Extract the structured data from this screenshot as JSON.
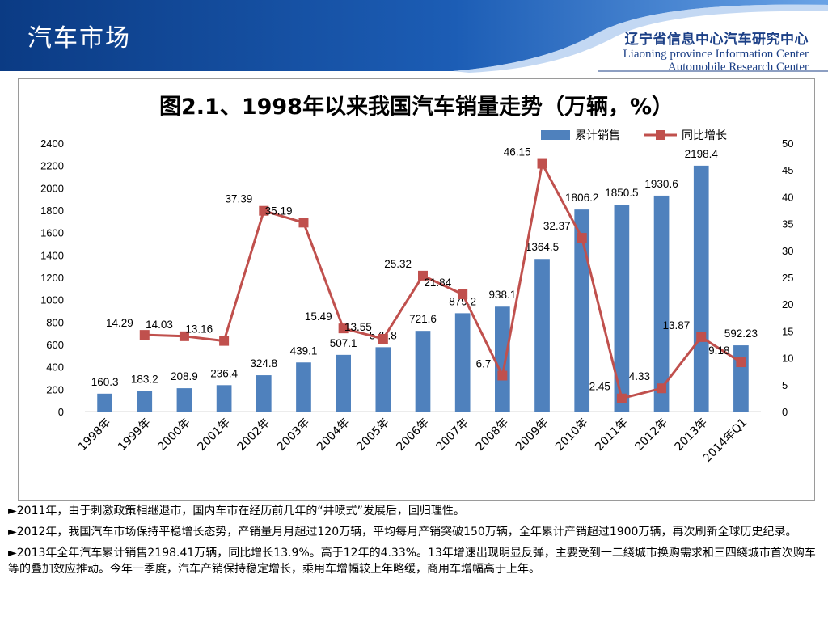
{
  "header": {
    "title": "汽车市场",
    "logo_cn": "辽宁省信息中心汽车研究中心",
    "logo_en_line1": "Liaoning province Information Center",
    "logo_en_line2": "Automobile Research Center"
  },
  "notes": [
    "►2011年，由于刺激政策相继退市，国内车市在经历前几年的“井喷式”发展后，回归理性。",
    "►2012年，我国汽车市场保持平稳增长态势，产销量月月超过120万辆，平均每月产销突破150万辆，全年累计产销超过1900万辆，再次刷新全球历史纪录。",
    "►2013年全年汽车累计销售2198.41万辆，同比增长13.9%。高于12年的4.33%。13年增速出现明显反弹，主要受到一二綫城市换购需求和三四綫城市首次购车等的叠加效应推动。今年一季度，汽车产销保持稳定增长，乘用车增幅较上年略缓，商用车增幅高于上年。"
  ],
  "colors": {
    "header_dark": "#0b3b84",
    "header_light": "#4f8bd6",
    "bar": "#4f81bd",
    "line": "#c0504d"
  },
  "chart_data": {
    "type": "bar",
    "title": "图2.1、1998年以来我国汽车销量走势（万辆，%）",
    "categories": [
      "1998年",
      "1999年",
      "2000年",
      "2001年",
      "2002年",
      "2003年",
      "2004年",
      "2005年",
      "2006年",
      "2007年",
      "2008年",
      "2009年",
      "2010年",
      "2011年",
      "2012年",
      "2013年",
      "2014年Q1"
    ],
    "series": [
      {
        "name": "累计销售",
        "type": "bar",
        "axis": "left",
        "values": [
          160.3,
          183.2,
          208.9,
          236.4,
          324.8,
          439.1,
          507.1,
          575.8,
          721.6,
          879.2,
          938.1,
          1364.5,
          1806.2,
          1850.5,
          1930.6,
          2198.4,
          592.23
        ],
        "labels": [
          "160.3",
          "183.2",
          "208.9",
          "236.4",
          "324.8",
          "439.1",
          "507.1",
          "575.8",
          "721.6",
          "879.2",
          "938.1",
          "1364.5",
          "1806.2",
          "1850.5",
          "1930.6",
          "2198.4",
          "592.23"
        ]
      },
      {
        "name": "同比增长",
        "type": "line",
        "axis": "right",
        "values": [
          null,
          14.29,
          14.03,
          13.16,
          37.39,
          35.19,
          15.49,
          13.55,
          25.32,
          21.84,
          6.7,
          46.15,
          32.37,
          2.45,
          4.33,
          13.87,
          9.18
        ],
        "labels": [
          "",
          "14.29",
          "14.03",
          "13.16",
          "37.39",
          "35.19",
          "15.49",
          "13.55",
          "25.32",
          "21.84",
          "6.7",
          "46.15",
          "32.37",
          "2.45",
          "4.33",
          "13.87",
          "9.18"
        ]
      }
    ],
    "y_left": {
      "min": 0,
      "max": 2400,
      "step": 200
    },
    "y_right": {
      "min": 0,
      "max": 50,
      "step": 5
    },
    "legend_position": "top-right",
    "grid": false
  }
}
